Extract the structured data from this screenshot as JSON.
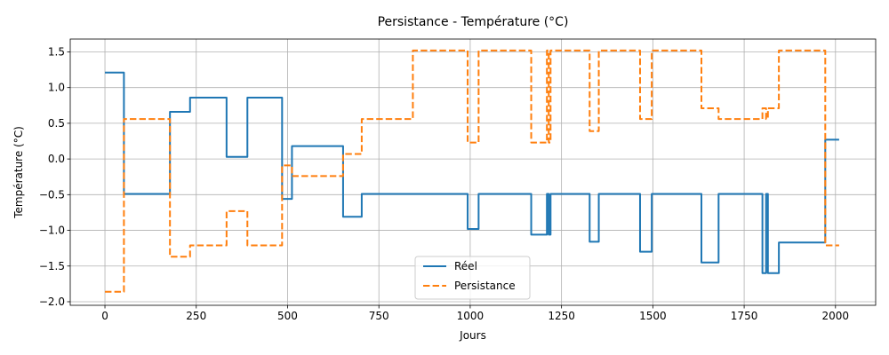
{
  "chart_data": {
    "type": "line",
    "title": "Persistance - Température (°C)",
    "xlabel": "Jours",
    "ylabel": "Température (°C)",
    "xlim": [
      -95,
      2110
    ],
    "ylim": [
      -2.05,
      1.68
    ],
    "xticks": [
      0,
      250,
      500,
      750,
      1000,
      1250,
      1500,
      1750,
      2000
    ],
    "yticks": [
      -2.0,
      -1.5,
      -1.0,
      -0.5,
      0.0,
      0.5,
      1.0,
      1.5
    ],
    "xtick_labels": [
      "0",
      "250",
      "500",
      "750",
      "1000",
      "1250",
      "1500",
      "1750",
      "2000"
    ],
    "ytick_labels": [
      "−2.0",
      "−1.5",
      "−1.0",
      "−0.5",
      "0.0",
      "0.5",
      "1.0",
      "1.5"
    ],
    "grid": true,
    "legend_position": "lower-center",
    "series": [
      {
        "name": "Réel",
        "color": "#1f77b4",
        "style": "solid",
        "x": [
          0,
          52,
          52,
          178,
          178,
          233,
          233,
          333,
          333,
          390,
          390,
          485,
          485,
          512,
          512,
          652,
          652,
          703,
          703,
          993,
          993,
          1023,
          1023,
          1167,
          1167,
          1210,
          1210,
          1215,
          1215,
          1220,
          1220,
          1327,
          1327,
          1352,
          1352,
          1465,
          1465,
          1497,
          1497,
          1633,
          1633,
          1680,
          1680,
          1800,
          1800,
          1810,
          1810,
          1815,
          1815,
          1845,
          1845,
          1972,
          1972,
          2010
        ],
        "y": [
          1.21,
          1.21,
          -0.49,
          -0.49,
          0.66,
          0.66,
          0.86,
          0.86,
          0.03,
          0.03,
          0.86,
          0.86,
          -0.56,
          -0.56,
          0.18,
          0.18,
          -0.81,
          -0.81,
          -0.49,
          -0.49,
          -0.98,
          -0.98,
          -0.49,
          -0.49,
          -1.06,
          -1.06,
          -0.49,
          -0.49,
          -1.06,
          -1.06,
          -0.49,
          -0.49,
          -1.16,
          -1.16,
          -0.49,
          -0.49,
          -1.3,
          -1.3,
          -0.49,
          -0.49,
          -1.45,
          -1.45,
          -0.49,
          -0.49,
          -1.6,
          -1.6,
          -0.49,
          -0.49,
          -1.6,
          -1.6,
          -1.17,
          -1.17,
          0.27,
          0.27
        ]
      },
      {
        "name": "Persistance",
        "color": "#ff7f0e",
        "style": "dashed",
        "x": [
          0,
          52,
          52,
          178,
          178,
          233,
          233,
          333,
          333,
          390,
          390,
          485,
          485,
          512,
          512,
          652,
          652,
          703,
          703,
          843,
          843,
          993,
          993,
          1023,
          1023,
          1167,
          1167,
          1210,
          1210,
          1215,
          1215,
          1220,
          1220,
          1327,
          1327,
          1352,
          1352,
          1465,
          1465,
          1497,
          1497,
          1633,
          1633,
          1680,
          1680,
          1800,
          1800,
          1810,
          1810,
          1815,
          1815,
          1845,
          1845,
          1972,
          1972,
          2010
        ],
        "y": [
          -1.86,
          -1.86,
          0.56,
          0.56,
          -1.37,
          -1.37,
          -1.21,
          -1.21,
          -0.73,
          -0.73,
          -1.21,
          -1.21,
          -0.09,
          -0.09,
          -0.24,
          -0.24,
          0.07,
          0.07,
          0.56,
          0.56,
          1.52,
          1.52,
          0.23,
          0.23,
          1.52,
          1.52,
          0.23,
          0.23,
          1.52,
          1.52,
          0.23,
          0.23,
          1.52,
          1.52,
          0.39,
          0.39,
          1.52,
          1.52,
          0.56,
          0.56,
          1.52,
          1.52,
          0.71,
          0.71,
          0.56,
          0.56,
          0.71,
          0.71,
          0.56,
          0.56,
          0.71,
          0.71,
          1.52,
          1.52,
          -1.21,
          -1.21
        ]
      }
    ]
  }
}
